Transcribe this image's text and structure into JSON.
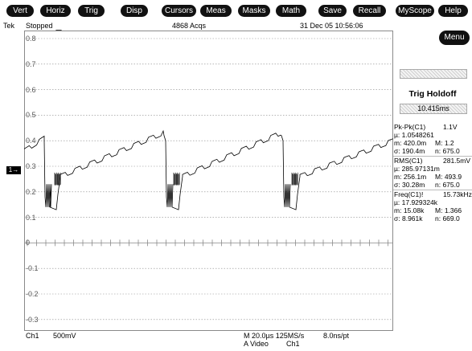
{
  "menu_bar": {
    "buttons": [
      {
        "id": "vert",
        "label": "Vert"
      },
      {
        "id": "horiz",
        "label": "Horiz"
      },
      {
        "id": "trig",
        "label": "Trig"
      },
      {
        "id": "disp",
        "label": "Disp"
      },
      {
        "id": "cursors",
        "label": "Cursors"
      },
      {
        "id": "meas",
        "label": "Meas"
      },
      {
        "id": "masks",
        "label": "Masks"
      },
      {
        "id": "math",
        "label": "Math"
      },
      {
        "id": "save",
        "label": "Save"
      },
      {
        "id": "recall",
        "label": "Recall"
      },
      {
        "id": "myscope",
        "label": "MyScope"
      },
      {
        "id": "help",
        "label": "Help"
      }
    ],
    "menu_label": "Menu"
  },
  "status": {
    "brand": "Tek",
    "state": "Stopped",
    "acqs": "4868 Acqs",
    "datetime": "31 Dec 05 10:56:06"
  },
  "y_ticks": [
    "0.8",
    "0.7",
    "0.6",
    "0.5",
    "0.4",
    "0.3",
    "0.2",
    "0.1",
    "0",
    "-0.1",
    "-0.2",
    "-0.3"
  ],
  "channel_marker": "1→",
  "trigger": {
    "title": "Trig Holdoff",
    "value": "10.415ms"
  },
  "measurements": [
    {
      "name": "Pk-Pk(C1)",
      "value": "1.1V",
      "mu": "1.0548261",
      "m": "420.0m",
      "M": "1.2",
      "sigma": "190.4m",
      "n": "675.0"
    },
    {
      "name": "RMS(C1)",
      "value": "281.5mV",
      "mu": "285.97131m",
      "m": "256.1m",
      "M": "493.9",
      "sigma": "30.28m",
      "n": "675.0"
    },
    {
      "name": "Freq(C1)!",
      "value": "15.73kHz",
      "mu": "17.929324k",
      "m": "15.08k",
      "M": "1.366",
      "sigma": "8.961k",
      "n": "669.0"
    }
  ],
  "footer": {
    "ch": "Ch1",
    "scale": "500mV",
    "timebase": "M 20.0µs 125MS/s",
    "resolution": "8.0ns/pt",
    "trigger_mode": "A  Video",
    "trigger_source": "Ch1"
  },
  "colors": {
    "waveform": "#000000",
    "grid": "#8a8a8a",
    "button_bg": "#111111"
  }
}
